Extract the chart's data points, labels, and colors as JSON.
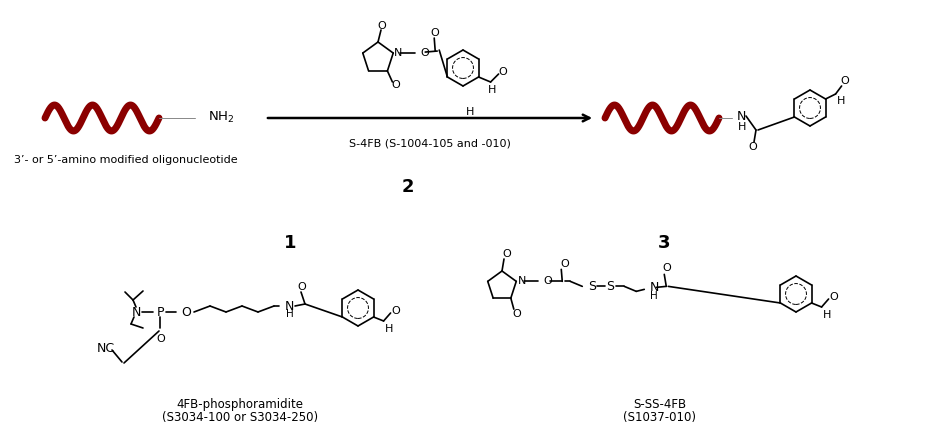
{
  "bg_color": "#ffffff",
  "dna_color": "#8B0000",
  "text_color": "#000000",
  "fig_width": 9.44,
  "fig_height": 4.37,
  "dpi": 100,
  "label_oligo": "3’- or 5’-amino modified oligonucleotide",
  "label_reagent": "S-4FB (S-1004-105 and -010)",
  "label_2": "2",
  "label_1": "1",
  "label_3": "3",
  "label_4fb": "4FB-phosphoramidite",
  "label_4fb2": "(S3034-100 or S3034-250)",
  "label_sss": "S-SS-4FB",
  "label_sss2": "(S1037-010)",
  "label_nc": "NC"
}
